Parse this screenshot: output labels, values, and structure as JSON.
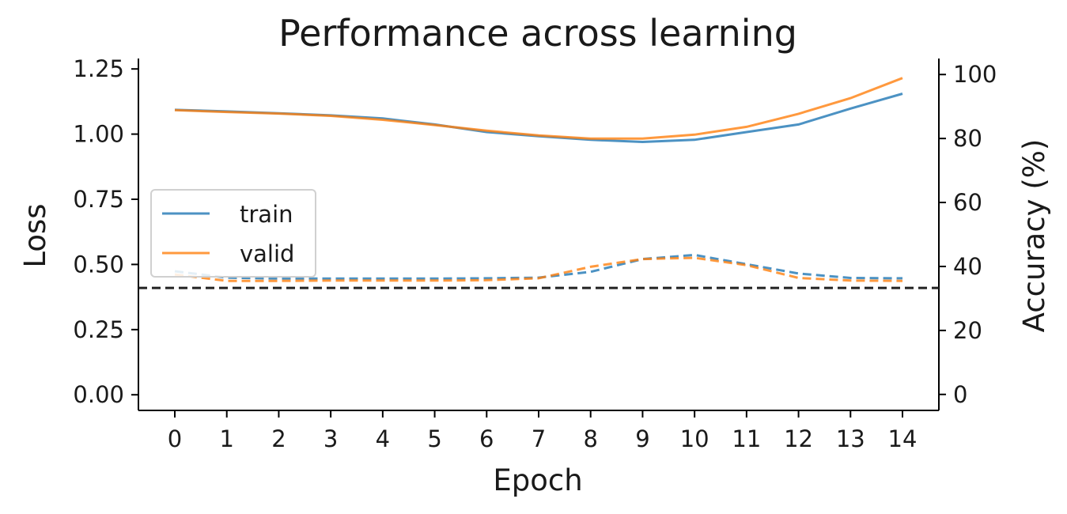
{
  "chart_data": {
    "type": "line",
    "title": "Performance across learning",
    "xlabel": "Epoch",
    "ylabel_left": "Loss",
    "ylabel_right": "Accuracy (%)",
    "x": [
      0,
      1,
      2,
      3,
      4,
      5,
      6,
      7,
      8,
      9,
      10,
      11,
      12,
      13,
      14
    ],
    "xlim": [
      -0.7,
      14.7
    ],
    "ylim_left": [
      -0.06,
      1.29
    ],
    "ylim_right": [
      -5,
      105
    ],
    "yticks_left": [
      "0.00",
      "0.25",
      "0.50",
      "0.75",
      "1.00",
      "1.25"
    ],
    "yticks_right": [
      "0",
      "20",
      "40",
      "60",
      "80",
      "100"
    ],
    "grid": false,
    "legend": {
      "placement": "center-left",
      "entries": [
        "train",
        "valid"
      ]
    },
    "colors": {
      "train": "#1f77b4",
      "valid": "#ff7f0e",
      "chance": "#222222"
    },
    "loss_series": [
      {
        "name": "train",
        "values": [
          1.093,
          1.087,
          1.08,
          1.072,
          1.06,
          1.037,
          1.008,
          0.992,
          0.978,
          0.97,
          0.978,
          1.008,
          1.037,
          1.098,
          1.155
        ]
      },
      {
        "name": "valid",
        "values": [
          1.092,
          1.085,
          1.079,
          1.07,
          1.055,
          1.035,
          1.013,
          0.995,
          0.983,
          0.983,
          0.998,
          1.028,
          1.078,
          1.138,
          1.215
        ]
      }
    ],
    "accuracy_series": [
      {
        "name": "train",
        "values": [
          38.5,
          36.5,
          36.2,
          36.2,
          36.2,
          36.2,
          36.3,
          36.5,
          38.3,
          42.3,
          43.6,
          40.7,
          37.8,
          36.4,
          36.3
        ]
      },
      {
        "name": "valid",
        "values": [
          37.5,
          35.5,
          35.5,
          35.6,
          35.6,
          35.6,
          35.7,
          36.3,
          39.9,
          42.3,
          42.7,
          40.4,
          36.4,
          35.6,
          35.5
        ]
      }
    ],
    "chance_line": {
      "axis": "left",
      "value": 0.41
    }
  }
}
